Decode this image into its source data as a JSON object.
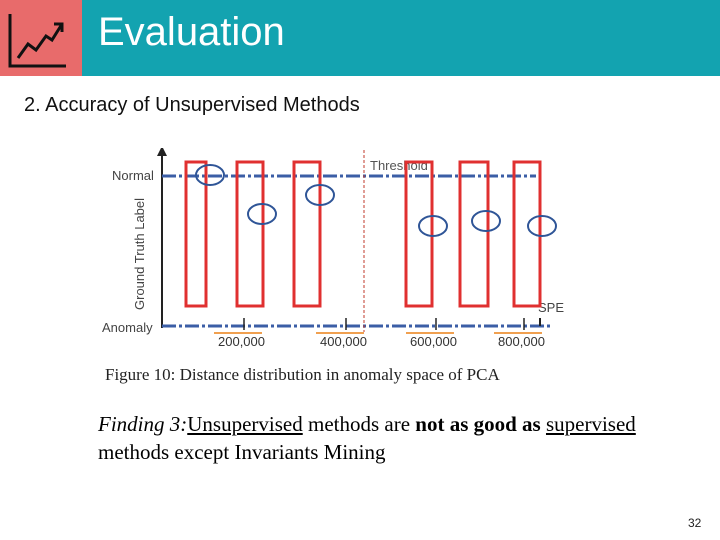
{
  "header": {
    "title": "Evaluation",
    "colors": {
      "bar": "#13a3b0",
      "logo_bg": "#e86b6b",
      "logo_stroke": "#111111"
    },
    "logo_icon": "line-chart-icon"
  },
  "subtitle": "2. Accuracy of Unsupervised Methods",
  "chart_data": {
    "type": "scatter",
    "title": "",
    "caption": "Figure 10: Distance distribution in anomaly space of PCA",
    "xlabel": "SPE",
    "ylabel": "Ground Truth Label",
    "x_ticks": [
      "200,000",
      "400,000",
      "600,000",
      "800,000"
    ],
    "y_categories": [
      "Anomaly",
      "Normal"
    ],
    "threshold_label": "Threshold",
    "colors": {
      "normal_line": "#3b5ea6",
      "anomaly_line": "#3b5ea6",
      "threshold": "#c0392b",
      "highlight": "#e03030",
      "circle": "#2f5597",
      "tick_underline": "#f0a050"
    }
  },
  "finding": {
    "prefix": "Finding 3:",
    "w1": "Unsupervised",
    "t1": " methods are ",
    "bold": "not as good as",
    "w2": "supervised",
    "t2": " methods except Invariants Mining"
  },
  "page_number": "32"
}
